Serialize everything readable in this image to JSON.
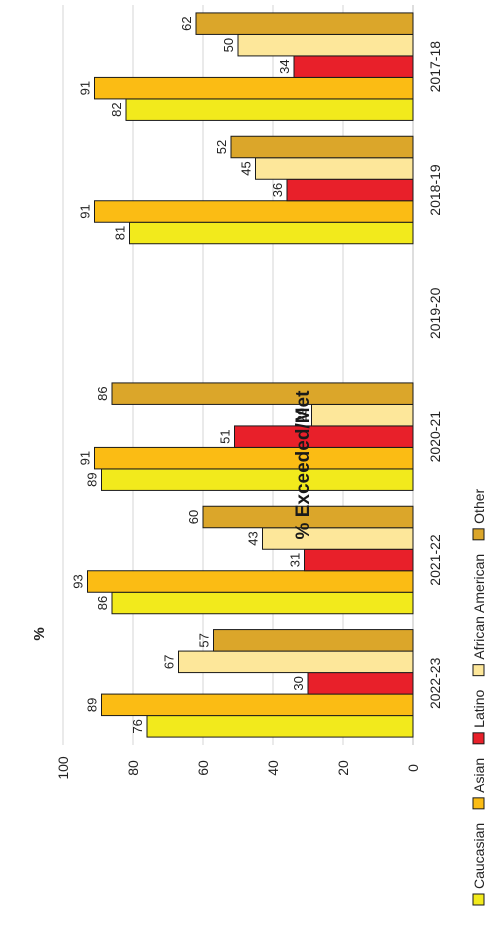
{
  "chart_data": {
    "type": "bar",
    "orientation": "horizontal-bars-rotated",
    "title": "% Exceeded/Met",
    "ylabel": "%",
    "xlabel": "",
    "ylim": [
      0,
      100
    ],
    "yticks": [
      0,
      20,
      40,
      60,
      80,
      100
    ],
    "grid": true,
    "legend_position": "bottom",
    "categories": [
      "2017-18",
      "2018-19",
      "2019-20",
      "2020-21",
      "2021-22",
      "2022-23"
    ],
    "series": [
      {
        "name": "Caucasian",
        "color": "#f2ea1c",
        "values": [
          82,
          81,
          null,
          89,
          86,
          76
        ]
      },
      {
        "name": "Asian",
        "color": "#fbbc14",
        "values": [
          91,
          91,
          null,
          91,
          93,
          89
        ]
      },
      {
        "name": "Latino",
        "color": "#e8202a",
        "values": [
          34,
          36,
          null,
          51,
          31,
          30
        ]
      },
      {
        "name": "African American",
        "color": "#fde79a",
        "values": [
          50,
          45,
          null,
          29,
          43,
          67
        ]
      },
      {
        "name": "Other",
        "color": "#dba62a",
        "values": [
          62,
          52,
          null,
          86,
          60,
          57
        ]
      }
    ]
  }
}
